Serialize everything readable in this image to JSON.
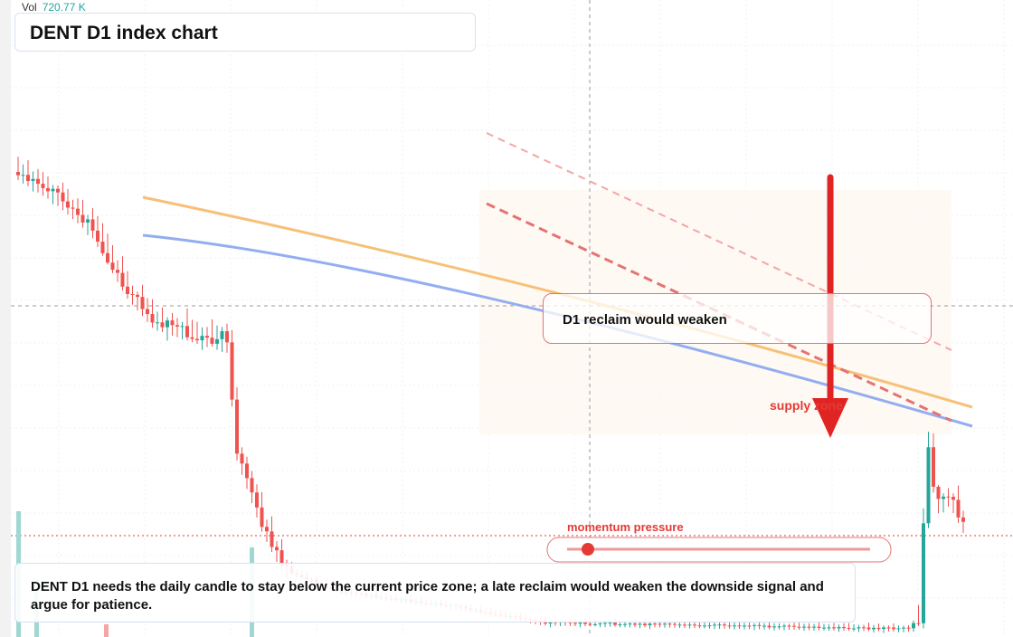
{
  "header": {
    "title": "DENT D1 index chart",
    "volume_label": "Vol",
    "volume_value": "720.77 K"
  },
  "annotations": {
    "reclaim": "D1 reclaim would weaken",
    "supply": "supply zone",
    "momentum": "momentum pressure"
  },
  "caption": "DENT D1 needs the daily candle to stay below the current price zone; a late reclaim would weaken the downside signal and argue for patience."
}
